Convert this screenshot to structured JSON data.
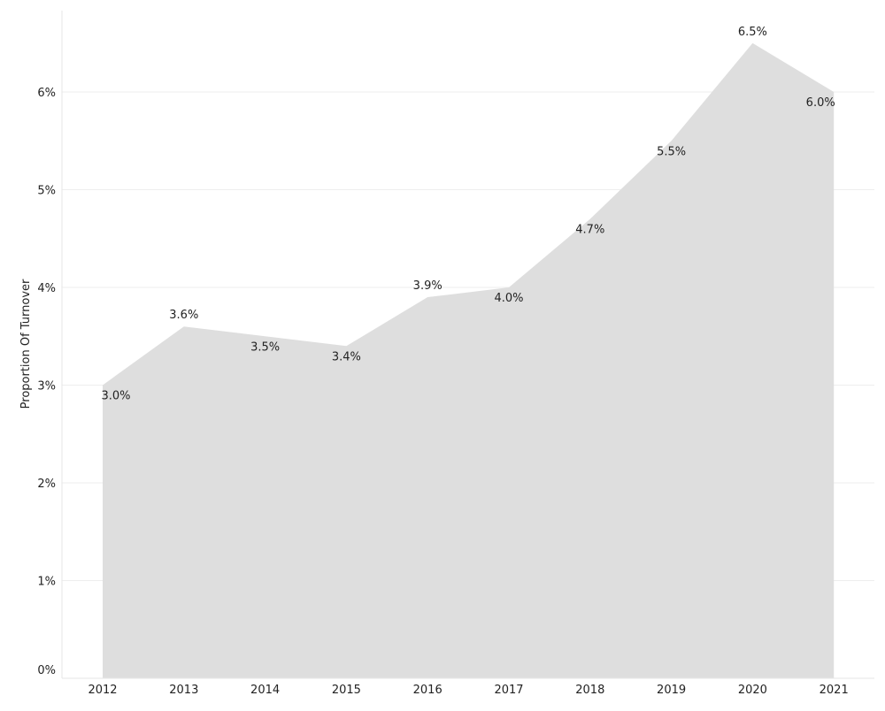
{
  "chart_data": {
    "type": "area",
    "title": "",
    "xlabel": "",
    "ylabel": "Proportion Of Turnover",
    "categories": [
      "2012",
      "2013",
      "2014",
      "2015",
      "2016",
      "2017",
      "2018",
      "2019",
      "2020",
      "2021"
    ],
    "series": [
      {
        "values": [
          3.0,
          3.6,
          3.5,
          3.4,
          3.9,
          4.0,
          4.7,
          5.5,
          6.5,
          6.0
        ],
        "data_labels": [
          "3.0%",
          "3.6%",
          "3.5%",
          "3.4%",
          "3.9%",
          "4.0%",
          "4.7%",
          "5.5%",
          "6.5%",
          "6.0%"
        ],
        "color": "#dedede"
      }
    ],
    "y_ticks": [
      0,
      1,
      2,
      3,
      4,
      5,
      6
    ],
    "y_tick_labels": [
      "0%",
      "1%",
      "2%",
      "3%",
      "4%",
      "5%",
      "6%"
    ],
    "ylim": [
      0,
      6.5
    ],
    "grid": true,
    "legend": "none"
  }
}
